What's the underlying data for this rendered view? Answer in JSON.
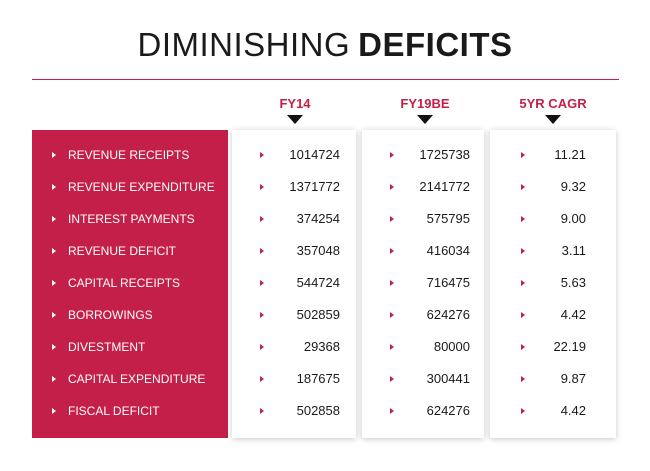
{
  "title": {
    "light": "DIMINISHING",
    "bold": "DEFICITS"
  },
  "colors": {
    "accent": "#c41f48",
    "text": "#1a1a1a",
    "panel": "#ffffff"
  },
  "chart_data": {
    "type": "table",
    "title": "DIMINISHING DEFICITS",
    "columns": [
      "FY14",
      "FY19BE",
      "5YR CAGR"
    ],
    "rows": [
      {
        "label": "REVENUE RECEIPTS",
        "values": [
          "1014724",
          "1725738",
          "11.21"
        ]
      },
      {
        "label": "REVENUE EXPENDITURE",
        "values": [
          "1371772",
          "2141772",
          "9.32"
        ]
      },
      {
        "label": "INTEREST PAYMENTS",
        "values": [
          "374254",
          "575795",
          "9.00"
        ]
      },
      {
        "label": "REVENUE DEFICIT",
        "values": [
          "357048",
          "416034",
          "3.11"
        ]
      },
      {
        "label": "CAPITAL RECEIPTS",
        "values": [
          "544724",
          "716475",
          "5.63"
        ]
      },
      {
        "label": "BORROWINGS",
        "values": [
          "502859",
          "624276",
          "4.42"
        ]
      },
      {
        "label": "DIVESTMENT",
        "values": [
          "29368",
          "80000",
          "22.19"
        ]
      },
      {
        "label": "CAPITAL EXPENDITURE",
        "values": [
          "187675",
          "300441",
          "9.87"
        ]
      },
      {
        "label": "FISCAL DEFICIT",
        "values": [
          "502858",
          "624276",
          "4.42"
        ]
      }
    ]
  }
}
